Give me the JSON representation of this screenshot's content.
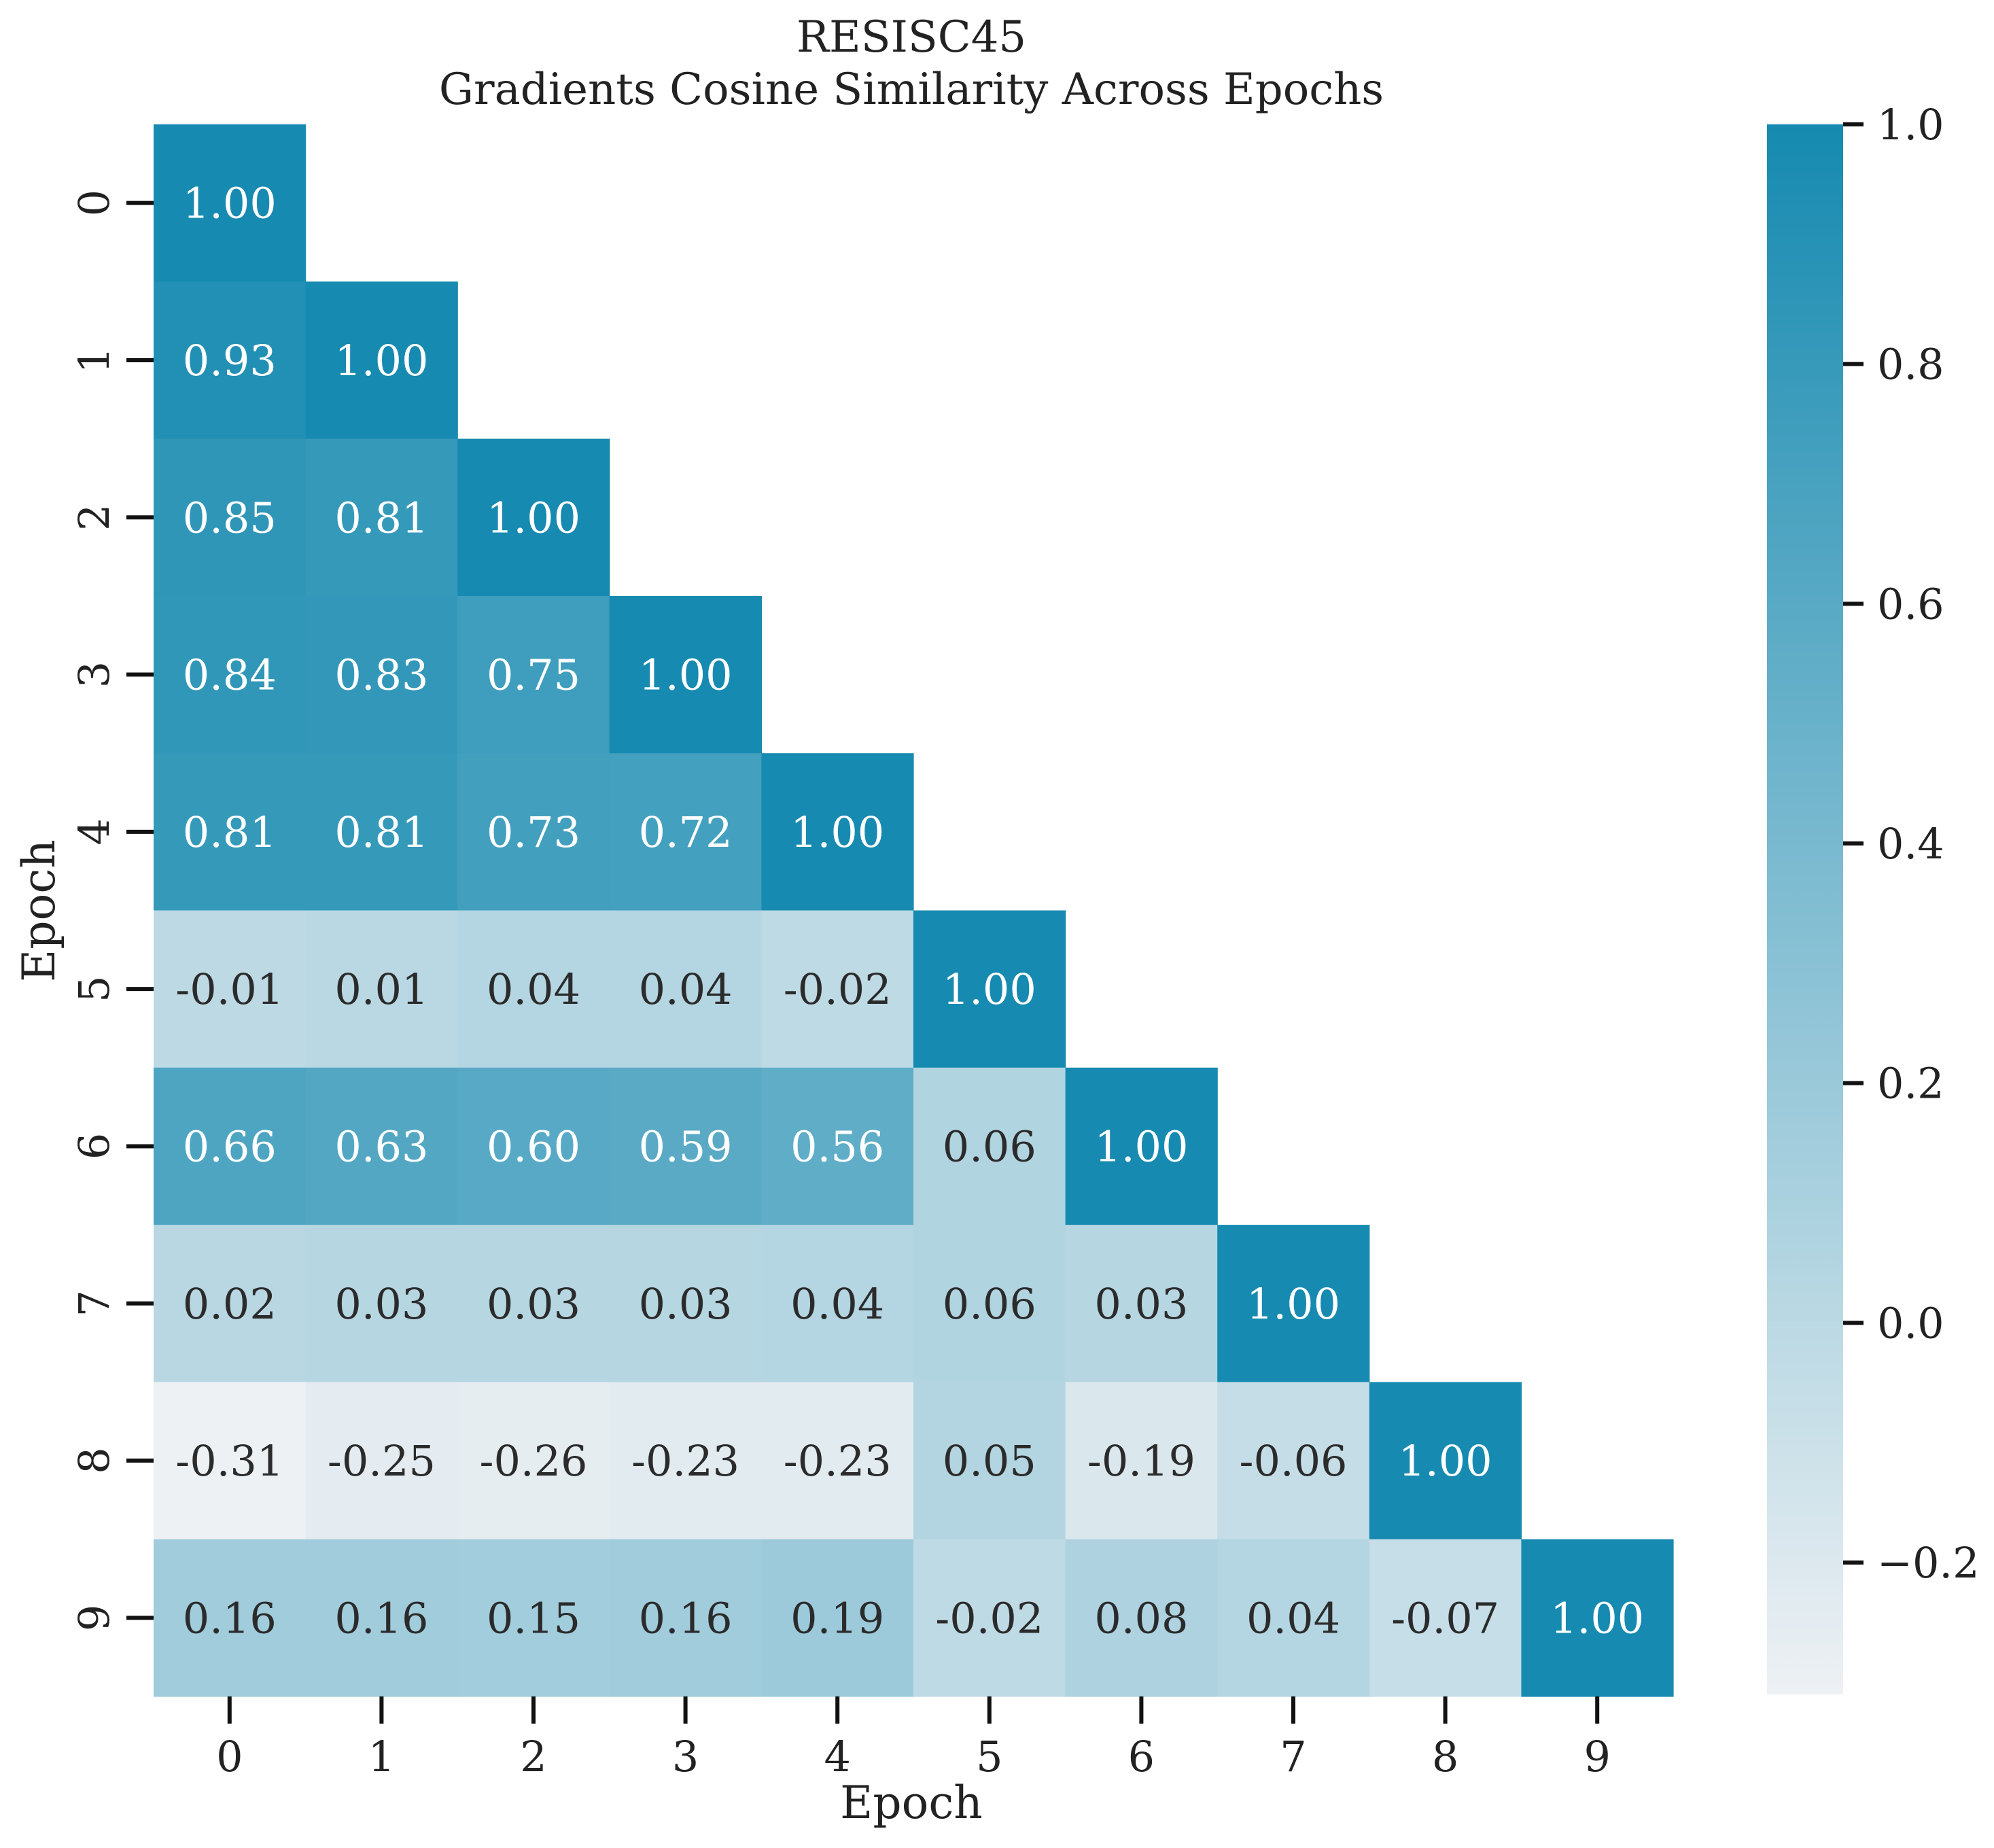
{
  "chart_data": {
    "type": "heatmap",
    "title_lines": [
      "RESISC45",
      "Gradients Cosine Similarity Across Epochs"
    ],
    "xlabel": "Epoch",
    "ylabel": "Epoch",
    "x_categories": [
      "0",
      "1",
      "2",
      "3",
      "4",
      "5",
      "6",
      "7",
      "8",
      "9"
    ],
    "y_categories": [
      "0",
      "1",
      "2",
      "3",
      "4",
      "5",
      "6",
      "7",
      "8",
      "9"
    ],
    "mask": "upper triangle (above diagonal) hidden",
    "values": [
      [
        1.0
      ],
      [
        0.93,
        1.0
      ],
      [
        0.85,
        0.81,
        1.0
      ],
      [
        0.84,
        0.83,
        0.75,
        1.0
      ],
      [
        0.81,
        0.81,
        0.73,
        0.72,
        1.0
      ],
      [
        -0.01,
        0.01,
        0.04,
        0.04,
        -0.02,
        1.0
      ],
      [
        0.66,
        0.63,
        0.6,
        0.59,
        0.56,
        0.06,
        1.0
      ],
      [
        0.02,
        0.03,
        0.03,
        0.03,
        0.04,
        0.06,
        0.03,
        1.0
      ],
      [
        -0.31,
        -0.25,
        -0.26,
        -0.23,
        -0.23,
        0.05,
        -0.19,
        -0.06,
        1.0
      ],
      [
        0.16,
        0.16,
        0.15,
        0.16,
        0.19,
        -0.02,
        0.08,
        0.04,
        -0.07,
        1.0
      ]
    ],
    "value_format": "2 decimals",
    "colorbar": {
      "vmin": -0.31,
      "vmax": 1.0,
      "ticks": [
        1.0,
        0.8,
        0.6,
        0.4,
        0.2,
        0.0,
        -0.2
      ],
      "tick_labels": [
        "1.0",
        "0.8",
        "0.6",
        "0.4",
        "0.2",
        "0.0",
        "−0.2"
      ],
      "color_low": "#eef1f4",
      "color_high": "#168ab0"
    },
    "text_color_dark": "#2b2b2b",
    "text_color_light": "#ffffff"
  }
}
